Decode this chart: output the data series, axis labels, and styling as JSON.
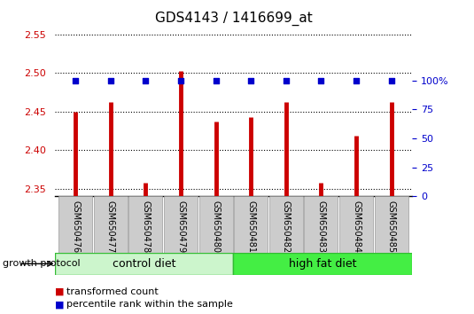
{
  "title": "GDS4143 / 1416699_at",
  "samples": [
    "GSM650476",
    "GSM650477",
    "GSM650478",
    "GSM650479",
    "GSM650480",
    "GSM650481",
    "GSM650482",
    "GSM650483",
    "GSM650484",
    "GSM650485"
  ],
  "transformed_count": [
    2.45,
    2.462,
    2.357,
    2.503,
    2.437,
    2.443,
    2.462,
    2.357,
    2.418,
    2.462
  ],
  "percentile_rank": [
    100,
    100,
    100,
    100,
    100,
    100,
    100,
    100,
    100,
    100
  ],
  "ylim_left": [
    2.34,
    2.56
  ],
  "yticks_left": [
    2.35,
    2.4,
    2.45,
    2.5,
    2.55
  ],
  "yticks_right": [
    0,
    25,
    50,
    75,
    100
  ],
  "ylim_right": [
    0,
    146.67
  ],
  "groups": [
    {
      "label": "control diet",
      "n": 5,
      "color_face": "#ccf5cc",
      "color_edge": "#33bb33"
    },
    {
      "label": "high fat diet",
      "n": 5,
      "color_face": "#44ee44",
      "color_edge": "#33bb33"
    }
  ],
  "bar_color": "#cc0000",
  "dot_color": "#0000cc",
  "bar_width": 0.08,
  "grid_color": "#000000",
  "background_color": "#ffffff",
  "sample_box_color": "#cccccc",
  "sample_box_edge": "#999999",
  "growth_protocol_label": "growth protocol",
  "legend_items": [
    {
      "label": "transformed count",
      "color": "#cc0000"
    },
    {
      "label": "percentile rank within the sample",
      "color": "#0000cc"
    }
  ],
  "title_fontsize": 11,
  "tick_fontsize": 8,
  "sample_fontsize": 7,
  "group_fontsize": 9,
  "legend_fontsize": 8
}
